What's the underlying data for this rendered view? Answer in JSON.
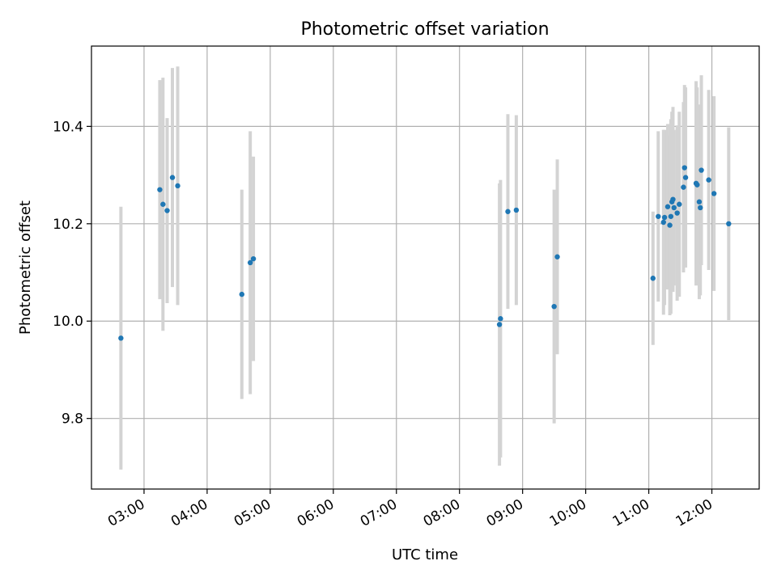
{
  "chart_data": {
    "type": "scatter",
    "title": "Photometric offset variation",
    "xlabel": "UTC time",
    "ylabel": "Photometric offset",
    "x_unit": "hours UTC",
    "xlim": [
      "02:10",
      "12:45"
    ],
    "ylim": [
      9.655,
      10.565
    ],
    "grid": true,
    "x_ticks": [
      "03:00",
      "04:00",
      "05:00",
      "06:00",
      "07:00",
      "08:00",
      "09:00",
      "10:00",
      "11:00",
      "12:00"
    ],
    "y_ticks": [
      "9.8",
      "10.0",
      "10.2",
      "10.4"
    ],
    "marker_color": "#1f77b4",
    "errorbar_color": "#d3d3d3",
    "points": [
      {
        "t": "02:38",
        "y": 9.965,
        "err": 0.27
      },
      {
        "t": "03:15",
        "y": 10.27,
        "err": 0.225
      },
      {
        "t": "03:18",
        "y": 10.24,
        "err": 0.26
      },
      {
        "t": "03:22",
        "y": 10.227,
        "err": 0.19
      },
      {
        "t": "03:27",
        "y": 10.295,
        "err": 0.225
      },
      {
        "t": "03:32",
        "y": 10.278,
        "err": 0.245
      },
      {
        "t": "04:33",
        "y": 10.055,
        "err": 0.215
      },
      {
        "t": "04:41",
        "y": 10.12,
        "err": 0.27
      },
      {
        "t": "04:44",
        "y": 10.128,
        "err": 0.21
      },
      {
        "t": "08:38",
        "y": 9.993,
        "err": 0.29
      },
      {
        "t": "08:39",
        "y": 10.005,
        "err": 0.285
      },
      {
        "t": "08:46",
        "y": 10.225,
        "err": 0.2
      },
      {
        "t": "08:54",
        "y": 10.228,
        "err": 0.195
      },
      {
        "t": "09:30",
        "y": 10.03,
        "err": 0.24
      },
      {
        "t": "09:33",
        "y": 10.132,
        "err": 0.2
      },
      {
        "t": "11:04",
        "y": 10.088,
        "err": 0.137
      },
      {
        "t": "11:09",
        "y": 10.215,
        "err": 0.175
      },
      {
        "t": "11:14",
        "y": 10.203,
        "err": 0.19
      },
      {
        "t": "11:15",
        "y": 10.213,
        "err": 0.18
      },
      {
        "t": "11:18",
        "y": 10.235,
        "err": 0.17
      },
      {
        "t": "11:20",
        "y": 10.197,
        "err": 0.185
      },
      {
        "t": "11:21",
        "y": 10.215,
        "err": 0.2
      },
      {
        "t": "11:22",
        "y": 10.245,
        "err": 0.185
      },
      {
        "t": "11:23",
        "y": 10.25,
        "err": 0.19
      },
      {
        "t": "11:24",
        "y": 10.233,
        "err": 0.16
      },
      {
        "t": "11:27",
        "y": 10.222,
        "err": 0.18
      },
      {
        "t": "11:29",
        "y": 10.24,
        "err": 0.19
      },
      {
        "t": "11:33",
        "y": 10.275,
        "err": 0.175
      },
      {
        "t": "11:34",
        "y": 10.315,
        "err": 0.17
      },
      {
        "t": "11:35",
        "y": 10.295,
        "err": 0.185
      },
      {
        "t": "11:45",
        "y": 10.283,
        "err": 0.21
      },
      {
        "t": "11:46",
        "y": 10.28,
        "err": 0.2
      },
      {
        "t": "11:48",
        "y": 10.245,
        "err": 0.2
      },
      {
        "t": "11:49",
        "y": 10.233,
        "err": 0.18
      },
      {
        "t": "11:50",
        "y": 10.31,
        "err": 0.195
      },
      {
        "t": "11:57",
        "y": 10.29,
        "err": 0.185
      },
      {
        "t": "12:02",
        "y": 10.262,
        "err": 0.2
      },
      {
        "t": "12:16",
        "y": 10.2,
        "err": 0.198
      }
    ]
  }
}
